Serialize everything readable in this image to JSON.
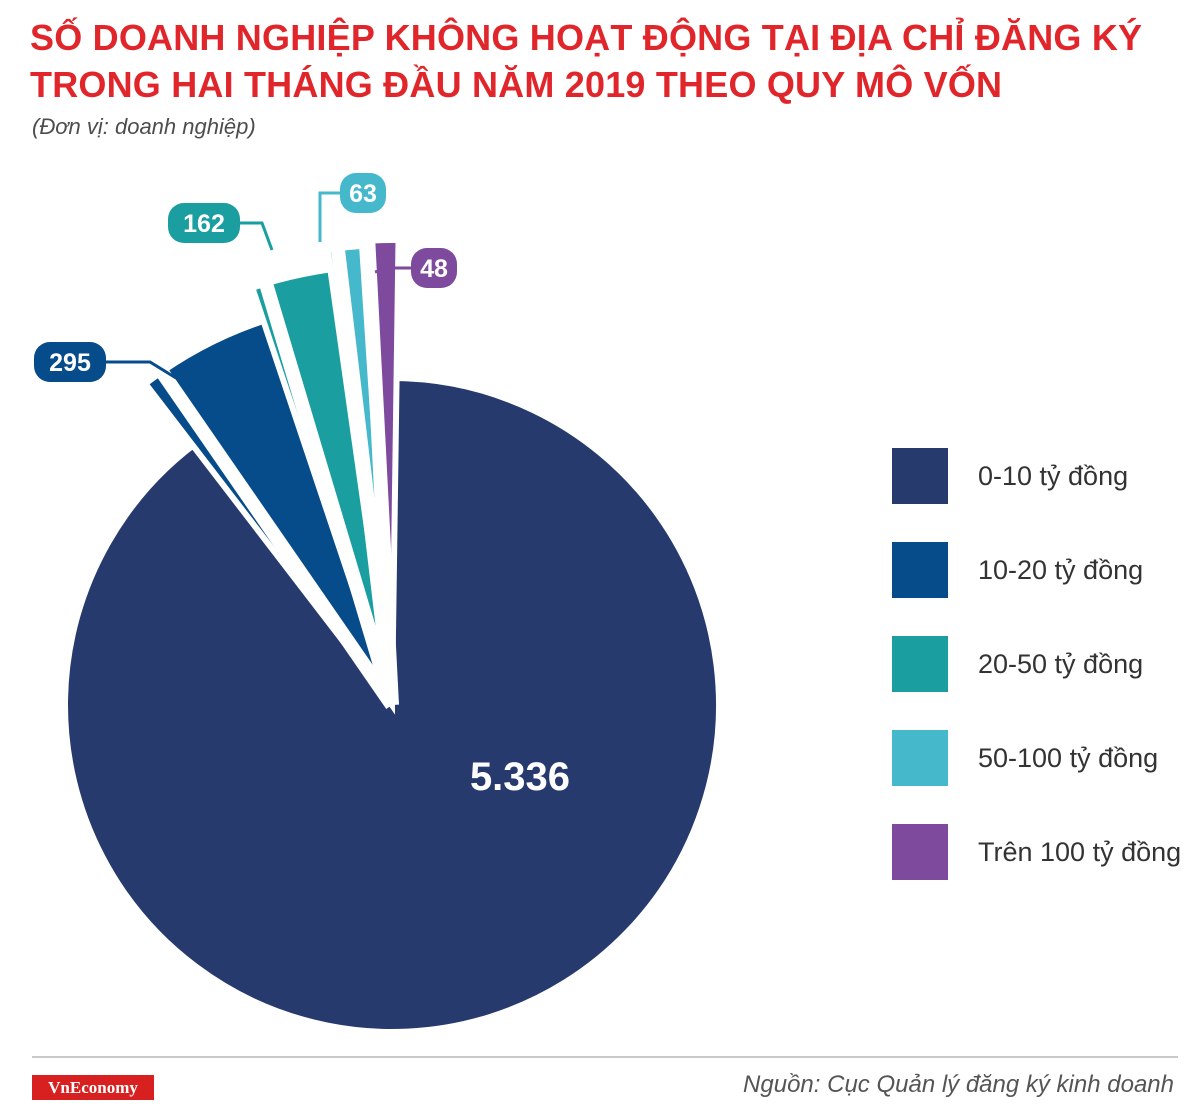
{
  "header": {
    "title_line1": "SỐ DOANH NGHIỆP KHÔNG HOẠT ĐỘNG TẠI ĐỊA CHỈ ĐĂNG KÝ",
    "title_line2": "TRONG HAI THÁNG ĐẦU NĂM 2019 THEO QUY MÔ VỐN",
    "unit": "(Đơn vị: doanh nghiệp)"
  },
  "chart_data": {
    "type": "pie",
    "title": "SỐ DOANH NGHIỆP KHÔNG HOẠT ĐỘNG TẠI ĐỊA CHỈ ĐĂNG KÝ TRONG HAI THÁNG ĐẦU NĂM 2019 THEO QUY MÔ VỐN",
    "subtitle": "(Đơn vị: doanh nghiệp)",
    "legend_position": "right",
    "slices": [
      {
        "label": "0-10 tỷ đồng",
        "value": 5336,
        "display": "5.336",
        "color": "#263a6e"
      },
      {
        "label": "10-20 tỷ đồng",
        "value": 295,
        "display": "295",
        "color": "#064b8a"
      },
      {
        "label": "20-50 tỷ đồng",
        "value": 162,
        "display": "162",
        "color": "#1a9e9f"
      },
      {
        "label": "50-100 tỷ đồng",
        "value": 63,
        "display": "63",
        "color": "#45b8cc"
      },
      {
        "label": "Trên 100 tỷ đồng",
        "value": 48,
        "display": "48",
        "color": "#7e4a9e"
      }
    ]
  },
  "footer": {
    "brand": "VnEconomy",
    "source": "Nguồn: Cục Quản lý đăng ký kinh doanh"
  }
}
